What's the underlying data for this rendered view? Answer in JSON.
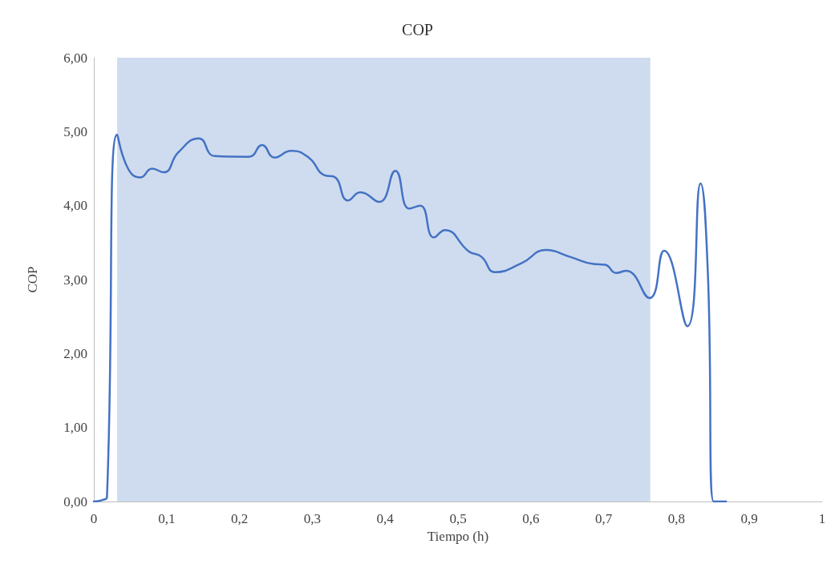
{
  "chart_data": {
    "type": "line",
    "title": "COP",
    "xlabel": "Tiempo (h)",
    "ylabel": "COP",
    "xlim": [
      0,
      1
    ],
    "xticks": [
      0,
      {
        "value": 0.1,
        "label": "0,1"
      },
      {
        "value": 0.2,
        "label": "0,2"
      },
      {
        "value": 0.3,
        "label": "0,3"
      },
      {
        "value": 0.4,
        "label": "0,4"
      },
      {
        "value": 0.5,
        "label": "0,5"
      },
      {
        "value": 0.6,
        "label": "0,6"
      },
      {
        "value": 0.7,
        "label": "0,7"
      },
      {
        "value": 0.8,
        "label": "0,8"
      },
      {
        "value": 0.9,
        "label": "0,9"
      },
      1
    ],
    "ylim": [
      0,
      6
    ],
    "yticks": [
      {
        "value": 0,
        "label": "0,00"
      },
      {
        "value": 1,
        "label": "1,00"
      },
      {
        "value": 2,
        "label": "2,00"
      },
      {
        "value": 3,
        "label": "3,00"
      },
      {
        "value": 4,
        "label": "4,00"
      },
      {
        "value": 5,
        "label": "5,00"
      },
      {
        "value": 6,
        "label": "6,00"
      }
    ],
    "grid": false,
    "marker": "none",
    "line_style": "solid",
    "bands": [
      {
        "axis": "x",
        "from": 0.032,
        "to": 0.764,
        "color": "#cfdcef"
      }
    ],
    "series": [
      {
        "color": "#4472c4",
        "x": [
          0,
          0.012,
          0.018,
          0.032,
          0.047,
          0.064,
          0.08,
          0.096,
          0.116,
          0.144,
          0.166,
          0.213,
          0.231,
          0.248,
          0.271,
          0.295,
          0.317,
          0.33,
          0.349,
          0.366,
          0.392,
          0.414,
          0.433,
          0.448,
          0.467,
          0.482,
          0.515,
          0.532,
          0.551,
          0.587,
          0.621,
          0.653,
          0.686,
          0.702,
          0.717,
          0.731,
          0.763,
          0.783,
          0.815,
          0.833,
          0.843,
          0.851,
          0.868
        ],
        "values": [
          0,
          0.02,
          0.06,
          4.96,
          4.5,
          4.38,
          4.5,
          4.45,
          4.72,
          4.91,
          4.67,
          4.66,
          4.82,
          4.65,
          4.74,
          4.65,
          4.41,
          4.39,
          4.07,
          4.18,
          4.05,
          4.47,
          3.96,
          4.0,
          3.57,
          3.67,
          3.38,
          3.31,
          3.1,
          3.22,
          3.4,
          3.31,
          3.21,
          3.2,
          3.09,
          3.12,
          2.75,
          3.39,
          2.37,
          4.3,
          3.1,
          0,
          0
        ]
      }
    ]
  }
}
